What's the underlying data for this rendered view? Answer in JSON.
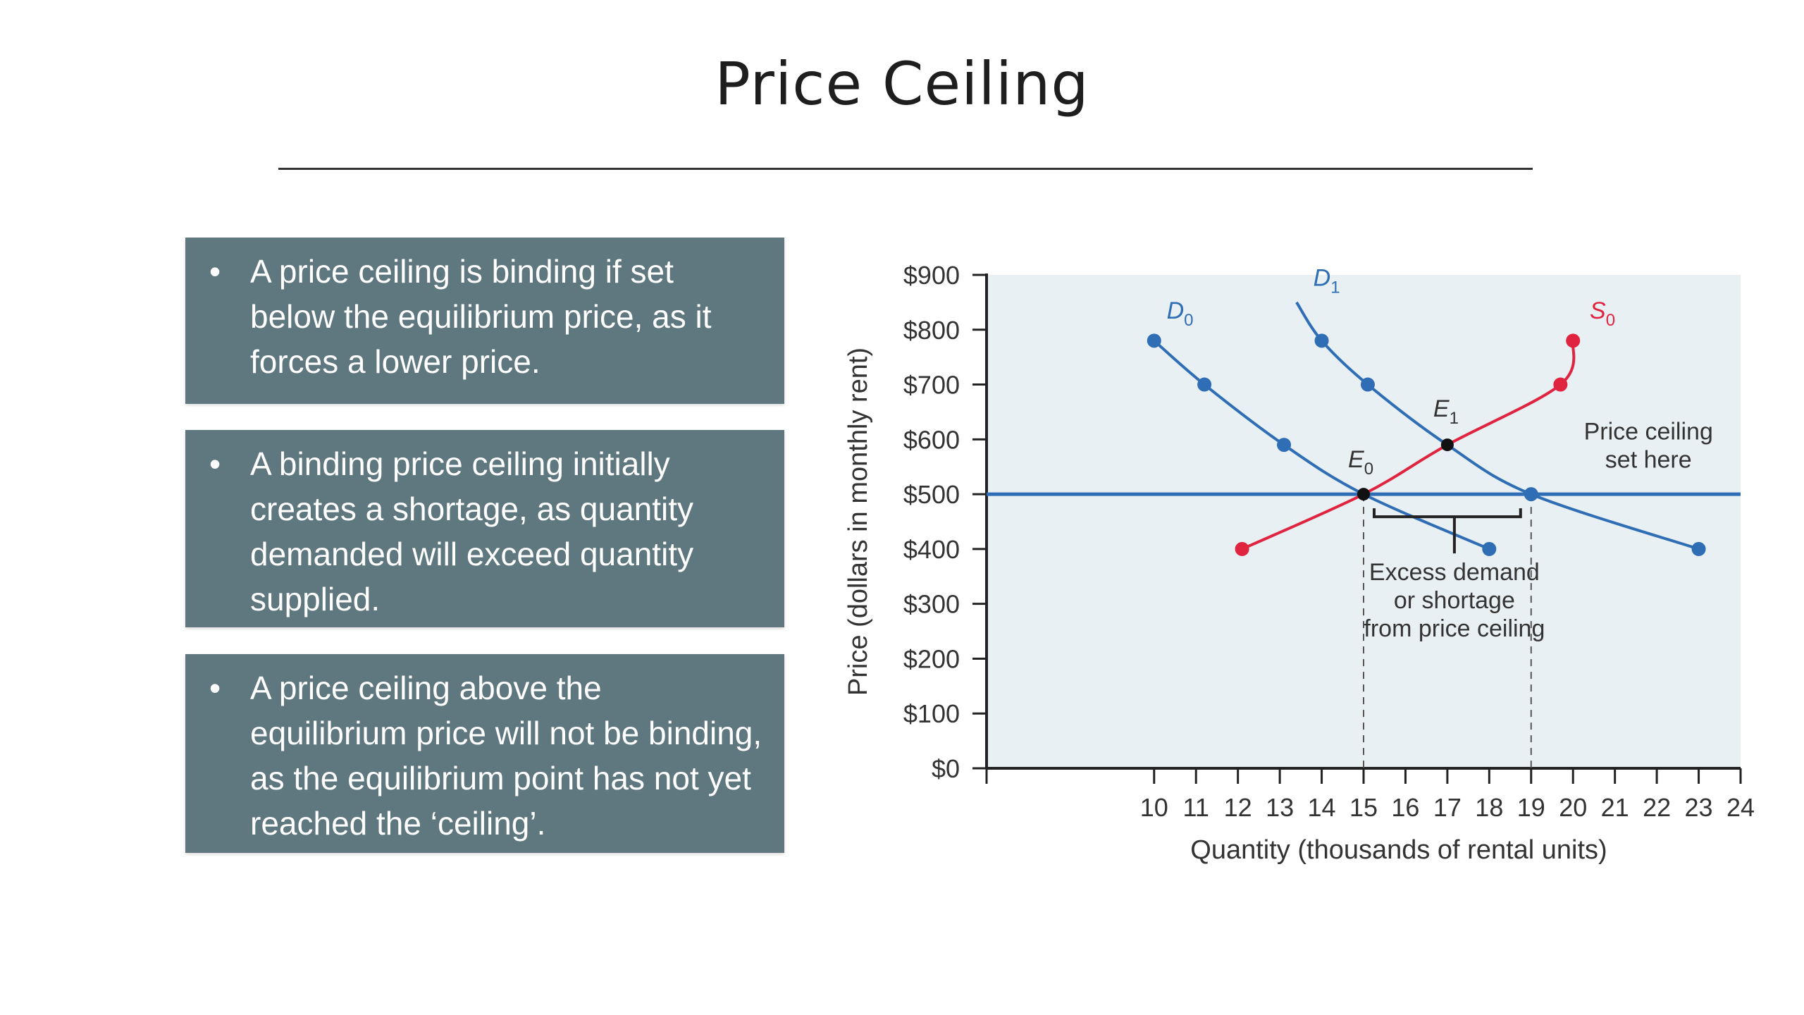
{
  "slide": {
    "title": "Price Ceiling",
    "bullets": [
      {
        "marker": "•",
        "text": "A price ceiling is binding if set below the equilibrium price, as it forces a lower price."
      },
      {
        "marker": "•",
        "text": "A binding price ceiling initially creates a shortage, as quantity demanded will exceed quantity supplied."
      },
      {
        "marker": "•",
        "text": "A price ceiling above the equilibrium price will not be binding, as the equilibrium point has not yet reached the ‘ceiling’."
      }
    ]
  },
  "chart_data": {
    "type": "line",
    "title": "",
    "xlabel": "Quantity (thousands of rental units)",
    "ylabel": "Price (dollars in monthly rent)",
    "xlim": [
      6,
      24
    ],
    "ylim": [
      0,
      900
    ],
    "xticks": [
      10,
      11,
      12,
      13,
      14,
      15,
      16,
      17,
      18,
      19,
      20,
      21,
      22,
      23,
      24
    ],
    "xtick_labels": [
      "10",
      "11",
      "12",
      "13",
      "14",
      "15",
      "16",
      "17",
      "18",
      "19",
      "20",
      "21",
      "22",
      "23",
      "24"
    ],
    "yticks": [
      0,
      100,
      200,
      300,
      400,
      500,
      600,
      700,
      800,
      900
    ],
    "ytick_labels": [
      "$0",
      "$100",
      "$200",
      "$300",
      "$400",
      "$500",
      "$600",
      "$700",
      "$800",
      "$900"
    ],
    "grid": false,
    "colors": {
      "demand": "#2f6db5",
      "supply": "#e0233f",
      "plot_bg": "#e8f0f3",
      "axis": "#222222",
      "point": "#111111"
    },
    "series": [
      {
        "name": "D0",
        "label": "D",
        "sub": "0",
        "color": "#2f6db5",
        "points": [
          [
            10,
            780
          ],
          [
            11.2,
            700
          ],
          [
            13.1,
            590
          ],
          [
            15,
            500
          ],
          [
            18,
            400
          ]
        ],
        "markers": [
          [
            10,
            780
          ],
          [
            11.2,
            700
          ],
          [
            13.1,
            590
          ],
          [
            18,
            400
          ]
        ]
      },
      {
        "name": "D1",
        "label": "D",
        "sub": "1",
        "color": "#2f6db5",
        "points": [
          [
            13.4,
            850
          ],
          [
            14,
            780
          ],
          [
            15.1,
            700
          ],
          [
            17,
            590
          ],
          [
            19,
            500
          ],
          [
            23,
            400
          ]
        ],
        "markers": [
          [
            14,
            780
          ],
          [
            15.1,
            700
          ],
          [
            19,
            500
          ],
          [
            23,
            400
          ]
        ]
      },
      {
        "name": "S0",
        "label": "S",
        "sub": "0",
        "color": "#e0233f",
        "points": [
          [
            12.1,
            400
          ],
          [
            15,
            500
          ],
          [
            17,
            590
          ],
          [
            19.7,
            700
          ],
          [
            20,
            780
          ]
        ],
        "markers": [
          [
            12.1,
            400
          ],
          [
            19.7,
            700
          ],
          [
            20,
            780
          ]
        ]
      }
    ],
    "equilibria": [
      {
        "name": "E0",
        "label": "E",
        "sub": "0",
        "x": 15,
        "y": 500
      },
      {
        "name": "E1",
        "label": "E",
        "sub": "1",
        "x": 17,
        "y": 590
      }
    ],
    "price_ceiling": {
      "y": 500,
      "color": "#2f6db5",
      "annotation": [
        "Price ceiling",
        "set here"
      ]
    },
    "shortage": {
      "from_x": 15,
      "to_x": 19,
      "annotation": [
        "Excess demand",
        "or shortage",
        "from price ceiling"
      ]
    }
  }
}
